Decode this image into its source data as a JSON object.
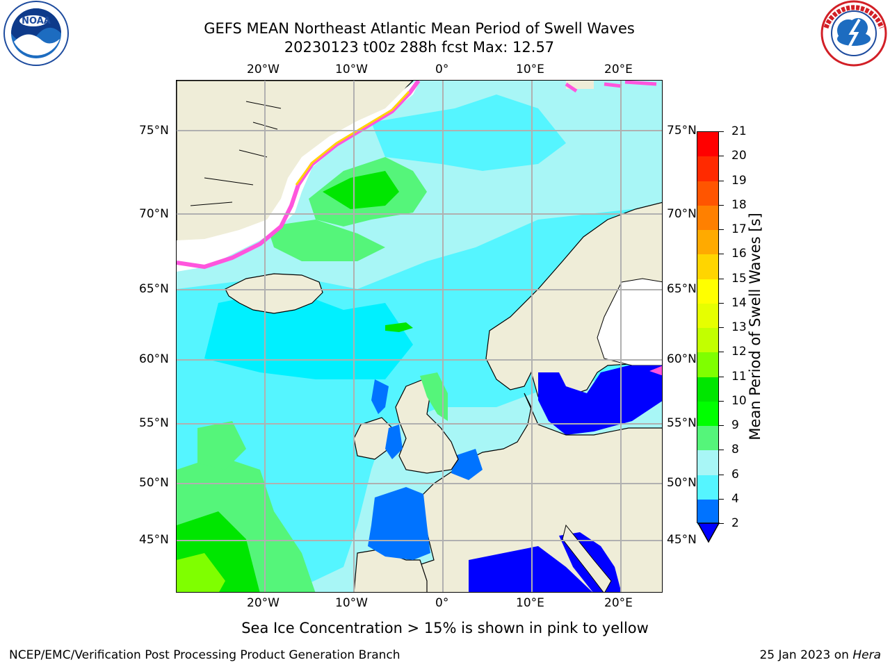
{
  "header": {
    "title_line1": "GEFS MEAN Northeast Atlantic Mean Period of Swell Waves",
    "title_line2": "20230123 t00z 288h fcst   Max: 12.57"
  },
  "logos": {
    "left": {
      "name": "noara-logo",
      "text": "NOAA",
      "ring_text": "NATIONAL OCEANIC AND ATMOSPHERIC ADMINISTRATION · U.S. DEPARTMENT OF COMMERCE"
    },
    "right": {
      "name": "nws-logo",
      "ring_text": "NATIONAL WEATHER SERVICE"
    }
  },
  "map": {
    "lon_top_labels": [
      "20°W",
      "10°W",
      "0°",
      "10°E",
      "20°E"
    ],
    "lon_bottom_labels": [
      "20°W",
      "10°W",
      "0°",
      "10°E",
      "20°E"
    ],
    "lat_left_labels": [
      "75°N",
      "70°N",
      "65°N",
      "60°N",
      "55°N",
      "50°N",
      "45°N"
    ],
    "lat_right_labels": [
      "75°N",
      "70°N",
      "65°N",
      "60°N",
      "55°N",
      "50°N",
      "45°N"
    ],
    "colors": {
      "ocean": "#a8f6f6",
      "land": "#efedd8",
      "grid": "#b0b0b0"
    }
  },
  "colorbar": {
    "label": "Mean Period of Swell Waves [s]",
    "ticks": [
      "21",
      "20",
      "19",
      "18",
      "17",
      "16",
      "15",
      "14",
      "13",
      "12",
      "11",
      "10",
      "9",
      "8",
      "6",
      "4",
      "2"
    ],
    "colors_top_to_bottom": [
      "#ff0000",
      "#ff2a00",
      "#ff5500",
      "#ff8000",
      "#ffaa00",
      "#ffd500",
      "#ffff00",
      "#e6ff00",
      "#c2ff00",
      "#7fff00",
      "#00e600",
      "#00ff00",
      "#55f57a",
      "#a8f6f6",
      "#55f5ff",
      "#00e6ff",
      "#0073ff"
    ],
    "extend_color": "#0000ff"
  },
  "caption": "Sea Ice Concentration > 15% is shown in pink to yellow",
  "footer": {
    "left": "NCEP/EMC/Verification Post Processing Product Generation Branch",
    "right_prefix": "25 Jan 2023 on ",
    "right_machine": "Hera"
  }
}
